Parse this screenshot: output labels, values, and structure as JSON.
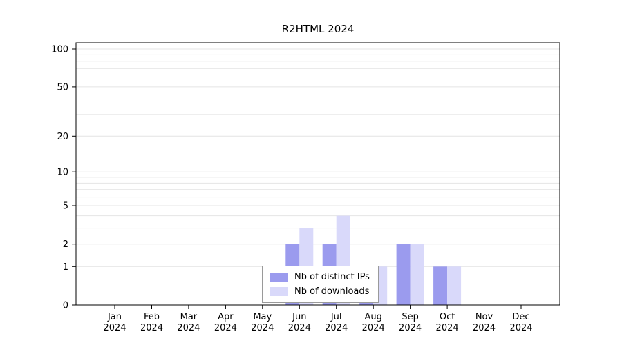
{
  "title": "R2HTML 2024",
  "legend": {
    "items": [
      {
        "label": "Nb of distinct IPs",
        "color": "#9b9bee"
      },
      {
        "label": "Nb of downloads",
        "color": "#d9d9fa"
      }
    ]
  },
  "chart_data": {
    "type": "bar",
    "title": "R2HTML 2024",
    "categories": [
      "Jan",
      "Feb",
      "Mar",
      "Apr",
      "May",
      "Jun",
      "Jul",
      "Aug",
      "Sep",
      "Oct",
      "Nov",
      "Dec"
    ],
    "year": "2024",
    "series": [
      {
        "name": "Nb of distinct IPs",
        "color": "#9b9bee",
        "values": [
          0,
          0,
          0,
          0,
          0,
          2,
          2,
          1,
          2,
          1,
          0,
          0
        ]
      },
      {
        "name": "Nb of downloads",
        "color": "#d9d9fa",
        "values": [
          0,
          0,
          0,
          0,
          0,
          3,
          4,
          1,
          2,
          1,
          0,
          0
        ]
      }
    ],
    "xlabel": "",
    "ylabel": "",
    "yscale": "log1p",
    "ylim": [
      0,
      100
    ],
    "yticks": [
      0,
      1,
      2,
      5,
      10,
      20,
      50,
      100
    ],
    "grid_values": [
      1,
      2,
      3,
      4,
      5,
      6,
      7,
      8,
      9,
      10,
      20,
      30,
      40,
      50,
      60,
      70,
      80,
      90,
      100
    ],
    "grid": "horizontal",
    "legend_position": "bottom-center"
  }
}
